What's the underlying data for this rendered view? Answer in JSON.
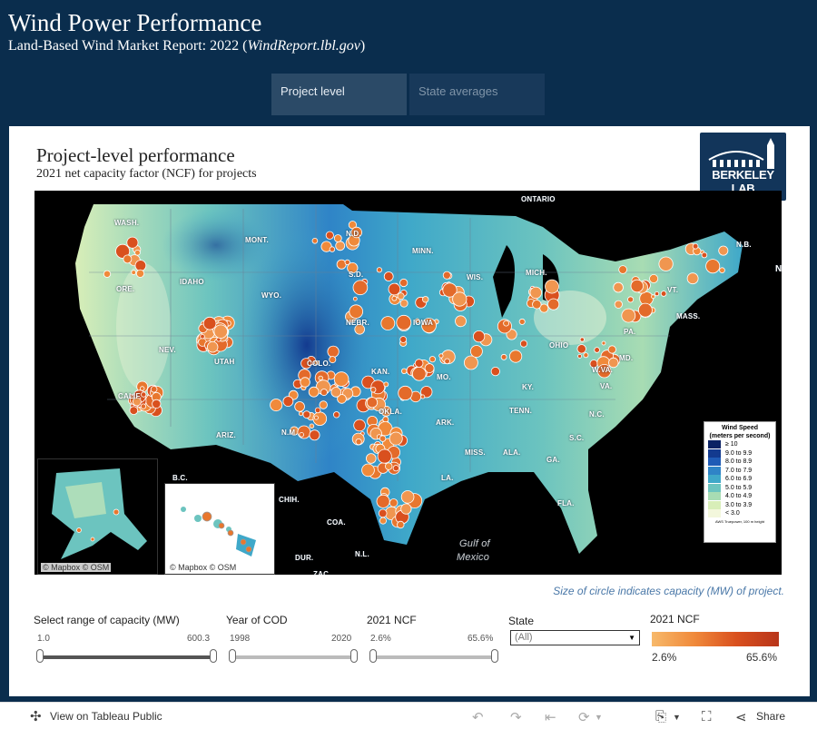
{
  "header": {
    "title": "Wind Power Performance",
    "subtitle_plain": "Land-Based Wind Market Report: 2022 (",
    "subtitle_link": "WindReport.lbl.gov",
    "subtitle_end": ")"
  },
  "tabs": [
    {
      "label": "Project level",
      "active": true
    },
    {
      "label": "State averages",
      "active": false
    }
  ],
  "card": {
    "title": "Project-level performance",
    "subtitle": "2021 net capacity factor (NCF) for projects",
    "logo_text": "BERKELEY LAB"
  },
  "map": {
    "labels": [
      "ONTARIO",
      "WASH.",
      "MONT.",
      "N.D.",
      "MINN.",
      "ORE.",
      "IDAHO",
      "WYO.",
      "S.D.",
      "WIS.",
      "MICH.",
      "N.B.",
      "VT.",
      "MASS.",
      "NEBR.",
      "IOWA",
      "OHIO",
      "PA.",
      "NEV.",
      "UTAH",
      "COLO.",
      "KAN.",
      "MO.",
      "W.VA.",
      "MD.",
      "CALIF.",
      "KY.",
      "VA.",
      "TENN.",
      "N.C.",
      "ARIZ.",
      "N.M.",
      "OKLA.",
      "ARK.",
      "S.C.",
      "MISS.",
      "ALA.",
      "GA.",
      "LA.",
      "B.C.",
      "CHIH.",
      "FLA.",
      "COA.",
      "DUR.",
      "N.L.",
      "ZAC.",
      "Gulf of",
      "Mexico",
      "N"
    ],
    "attribution_alaska": "© Mapbox  © OSM",
    "attribution_hawaii": "© Mapbox  © OSM",
    "legend": {
      "title": "Wind Speed",
      "subtitle": "(meters per second)",
      "rows": [
        {
          "label": "≥ 10",
          "color": "#0b2264"
        },
        {
          "label": "9.0 to 9.9",
          "color": "#133a8f"
        },
        {
          "label": "8.0 to 8.9",
          "color": "#1f5bb6"
        },
        {
          "label": "7.0 to 7.9",
          "color": "#2f84c7"
        },
        {
          "label": "6.0 to 6.9",
          "color": "#3fa8c9"
        },
        {
          "label": "5.0 to 5.9",
          "color": "#6cc4bf"
        },
        {
          "label": "4.0 to 4.9",
          "color": "#a8dcb3"
        },
        {
          "label": "3.0 to 3.9",
          "color": "#d8eeb8"
        },
        {
          "label": "< 3.0",
          "color": "#f3f7dc"
        }
      ],
      "footnote": "AWS Truepower, 100 m height"
    }
  },
  "size_note": "Size of circle indicates capacity (MW) of project.",
  "controls": {
    "capacity": {
      "label": "Select range of capacity (MW)",
      "min": "1.0",
      "max": "600.3"
    },
    "cod": {
      "label": "Year of COD",
      "min": "1998",
      "max": "2020"
    },
    "ncf": {
      "label": "2021 NCF",
      "min": "2.6%",
      "max": "65.6%"
    },
    "state": {
      "label": "State",
      "value": "(All)"
    },
    "ncf_legend": {
      "label": "2021 NCF",
      "min": "2.6%",
      "max": "65.6%",
      "colors": [
        "#f7b96a",
        "#b8351a"
      ]
    }
  },
  "bottom_bar": {
    "view_label": "View on Tableau Public",
    "share_label": "Share"
  }
}
